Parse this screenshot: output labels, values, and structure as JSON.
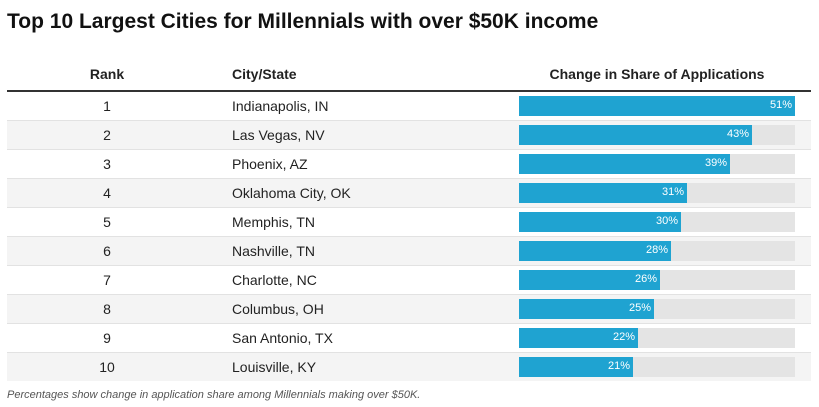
{
  "title": "Top 10 Largest Cities for Millennials with over $50K income",
  "columns": {
    "rank": "Rank",
    "city": "City/State",
    "change": "Change in Share of Applications"
  },
  "chart_data": {
    "type": "bar",
    "title": "Top 10 Largest Cities for Millennials with over $50K income",
    "categories": [
      "Indianapolis, IN",
      "Las Vegas, NV",
      "Phoenix, AZ",
      "Oklahoma City, OK",
      "Memphis, TN",
      "Nashville, TN",
      "Charlotte, NC",
      "Columbus, OH",
      "San Antonio, TX",
      "Louisville, KY"
    ],
    "ranks": [
      "1",
      "2",
      "3",
      "4",
      "5",
      "6",
      "7",
      "8",
      "9",
      "10"
    ],
    "values": [
      51,
      43,
      39,
      31,
      30,
      28,
      26,
      25,
      22,
      21
    ],
    "value_labels": [
      "51%",
      "43%",
      "39%",
      "31%",
      "30%",
      "28%",
      "26%",
      "25%",
      "22%",
      "21%"
    ],
    "xlim": [
      0,
      51
    ],
    "colors": {
      "bar": "#1fa3d1",
      "track": "#e4e4e4"
    }
  },
  "footnote": "Percentages show change in application share among Millennials making over $50K."
}
